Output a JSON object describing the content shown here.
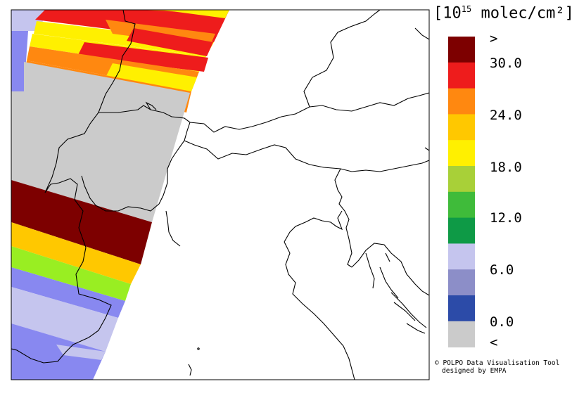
{
  "legend": {
    "unit_prefix": "[10",
    "unit_exp": "15",
    "unit_suffix": " molec/cm²]",
    "colors": [
      "#7d0000",
      "#ee1c1c",
      "#ff8810",
      "#ffc800",
      "#fff000",
      "#a8d038",
      "#3fbb3a",
      "#0e9a46",
      "#c5c5ee",
      "#8c8ec8",
      "#2c4ba8",
      "#cbcbcb"
    ],
    "ticks": [
      ">",
      "30.0",
      "24.0",
      "18.0",
      "12.0",
      "6.0",
      "0.0",
      "<"
    ]
  },
  "credit": {
    "line1": "© POLPO Data Visualisation Tool",
    "line2": "designed by EMPA"
  },
  "swath_colors": {
    "dark_red": "#7d0000",
    "red": "#ee1c1c",
    "orange": "#ff8810",
    "amber": "#ffc800",
    "yellow": "#fff000",
    "lime": "#99ee22",
    "lavender": "#c5c5ee",
    "blue_violet": "#8888f0",
    "grey": "#cbcbcb"
  }
}
